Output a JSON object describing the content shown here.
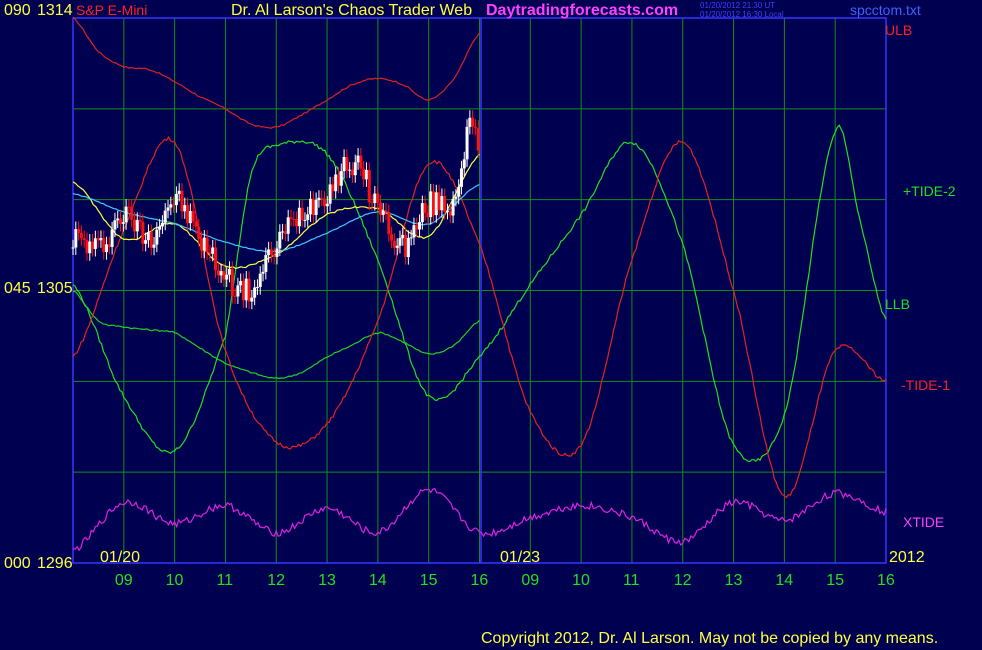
{
  "header": {
    "y_top": "090",
    "price_top": "1314",
    "instrument": "S&P E-Mini",
    "title": "Dr. Al Larson's Chaos Trader Web",
    "site": "Daytradingforecasts.com",
    "ts_ut": "01/20/2012 21:30 UT",
    "ts_local": "01/20/2012 16:30 Local",
    "file": "spcctom.txt"
  },
  "left_axis": {
    "mid_index": "045",
    "mid_price": "1305",
    "bottom_index": "000",
    "bottom_price": "1296"
  },
  "right_labels": {
    "ulb": "ULB",
    "tide2": "+TIDE-2",
    "llb": "LLB",
    "tide1": "-TIDE-1",
    "xtide": "XTIDE"
  },
  "dates": {
    "d1": "01/20",
    "d2": "01/23",
    "year": "2012"
  },
  "hours": [
    "09",
    "10",
    "11",
    "12",
    "13",
    "14",
    "15",
    "16",
    "09",
    "10",
    "11",
    "12",
    "13",
    "14",
    "15",
    "16"
  ],
  "copyright": "Copyright 2012, Dr. Al Larson. May not be copied by any means.",
  "colors": {
    "background": "#000050",
    "grid": "#0f8f1a",
    "axis": "#3636ff",
    "ulb": "#e02020",
    "llb": "#20d020",
    "tide_plus": "#20e020",
    "tide_minus": "#e82020",
    "xtide": "#e020e0",
    "ma_fast": "#ffff40",
    "ma_slow": "#40c8ff",
    "candle_up": "#ffffff",
    "candle_down": "#ff1010"
  },
  "chart_data": {
    "type": "line",
    "ylim": [
      1296,
      1314
    ],
    "index_scale": [
      0,
      90
    ],
    "x_hours": [
      "01/20 08:00",
      "09",
      "10",
      "11",
      "12",
      "13",
      "14",
      "15",
      "16",
      "01/23 09",
      "10",
      "11",
      "12",
      "13",
      "14",
      "15",
      "16"
    ],
    "series": [
      {
        "name": "ULB",
        "x": [
          8.0,
          8.5,
          9.0,
          9.5,
          10.0,
          10.5,
          11.0,
          11.5,
          12.0,
          12.5,
          13.0,
          13.5,
          14.0,
          14.5,
          15.0,
          15.5,
          16.0
        ],
        "values": [
          1314.0,
          1312.9,
          1312.4,
          1312.3,
          1311.9,
          1311.4,
          1311.0,
          1310.5,
          1310.4,
          1310.8,
          1311.3,
          1311.8,
          1312.0,
          1311.8,
          1311.3,
          1312.0,
          1313.5
        ]
      },
      {
        "name": "LLB",
        "x": [
          8.0,
          8.5,
          9.0,
          9.5,
          10.0,
          10.5,
          11.0,
          11.5,
          12.0,
          12.5,
          13.0,
          13.5,
          14.0,
          14.5,
          15.0,
          15.5,
          16.0
        ],
        "values": [
          1305.0,
          1304.0,
          1303.8,
          1303.7,
          1303.6,
          1303.1,
          1302.6,
          1302.3,
          1302.1,
          1302.3,
          1302.8,
          1303.2,
          1303.6,
          1303.3,
          1302.9,
          1303.2,
          1304.0
        ]
      },
      {
        "name": "+TIDE-2",
        "x": [
          8.0,
          9.0,
          10.0,
          11.0,
          11.5,
          12.0,
          13.0,
          14.0,
          15.0,
          16.0,
          17.0,
          18.0,
          19.0,
          20.0,
          21.0,
          22.0,
          23.0,
          23.5,
          24.0
        ],
        "values": [
          1305.2,
          1301.5,
          1299.7,
          1303.5,
          1308.8,
          1309.8,
          1309.5,
          1306.0,
          1301.5,
          1302.8,
          1305.2,
          1307.5,
          1309.9,
          1306.5,
          1299.9,
          1300.9,
          1310.2,
          1307.2,
          1304.0
        ]
      },
      {
        "name": "-TIDE-1",
        "x": [
          8.0,
          9.0,
          10.0,
          11.0,
          12.0,
          13.0,
          14.0,
          15.0,
          16.0,
          17.0,
          18.0,
          19.0,
          20.0,
          21.0,
          22.0,
          23.0,
          24.0
        ],
        "values": [
          1302.8,
          1307.0,
          1309.9,
          1303.0,
          1300.0,
          1300.6,
          1304.0,
          1309.2,
          1306.5,
          1301.0,
          1299.9,
          1306.0,
          1309.9,
          1305.0,
          1298.2,
          1303.0,
          1302.0
        ]
      },
      {
        "name": "XTIDE",
        "x": [
          8.0,
          9.0,
          10.0,
          11.0,
          12.0,
          13.0,
          14.0,
          15.0,
          16.0,
          17.0,
          18.0,
          19.0,
          20.0,
          21.0,
          22.0,
          23.0,
          24.0
        ],
        "values": [
          1296.4,
          1298.0,
          1297.3,
          1297.9,
          1297.0,
          1297.8,
          1297.0,
          1298.4,
          1297.0,
          1297.5,
          1297.9,
          1297.5,
          1296.7,
          1298.0,
          1297.4,
          1298.3,
          1297.7
        ]
      },
      {
        "name": "Price",
        "x": [
          8.0,
          8.5,
          9.0,
          9.5,
          10.0,
          10.5,
          11.0,
          11.5,
          12.0,
          12.5,
          13.0,
          13.5,
          14.0,
          14.5,
          15.0,
          15.5,
          15.8,
          16.0
        ],
        "values": [
          1306.8,
          1306.4,
          1307.5,
          1306.8,
          1308.0,
          1306.7,
          1305.5,
          1305.0,
          1306.5,
          1307.6,
          1308.3,
          1309.2,
          1307.8,
          1306.5,
          1307.8,
          1308.0,
          1310.4,
          1309.5
        ]
      },
      {
        "name": "MA-fast",
        "x": [
          8.0,
          9.0,
          10.0,
          11.0,
          12.0,
          13.0,
          14.0,
          15.0,
          16.0
        ],
        "values": [
          1308.6,
          1306.7,
          1307.2,
          1305.8,
          1306.2,
          1307.5,
          1307.7,
          1306.8,
          1309.5
        ]
      },
      {
        "name": "MA-slow",
        "x": [
          8.0,
          9.0,
          10.0,
          11.0,
          12.0,
          13.0,
          14.0,
          15.0,
          16.0
        ],
        "values": [
          1308.2,
          1307.6,
          1307.2,
          1306.6,
          1306.3,
          1306.9,
          1307.6,
          1307.2,
          1308.5
        ]
      }
    ]
  }
}
